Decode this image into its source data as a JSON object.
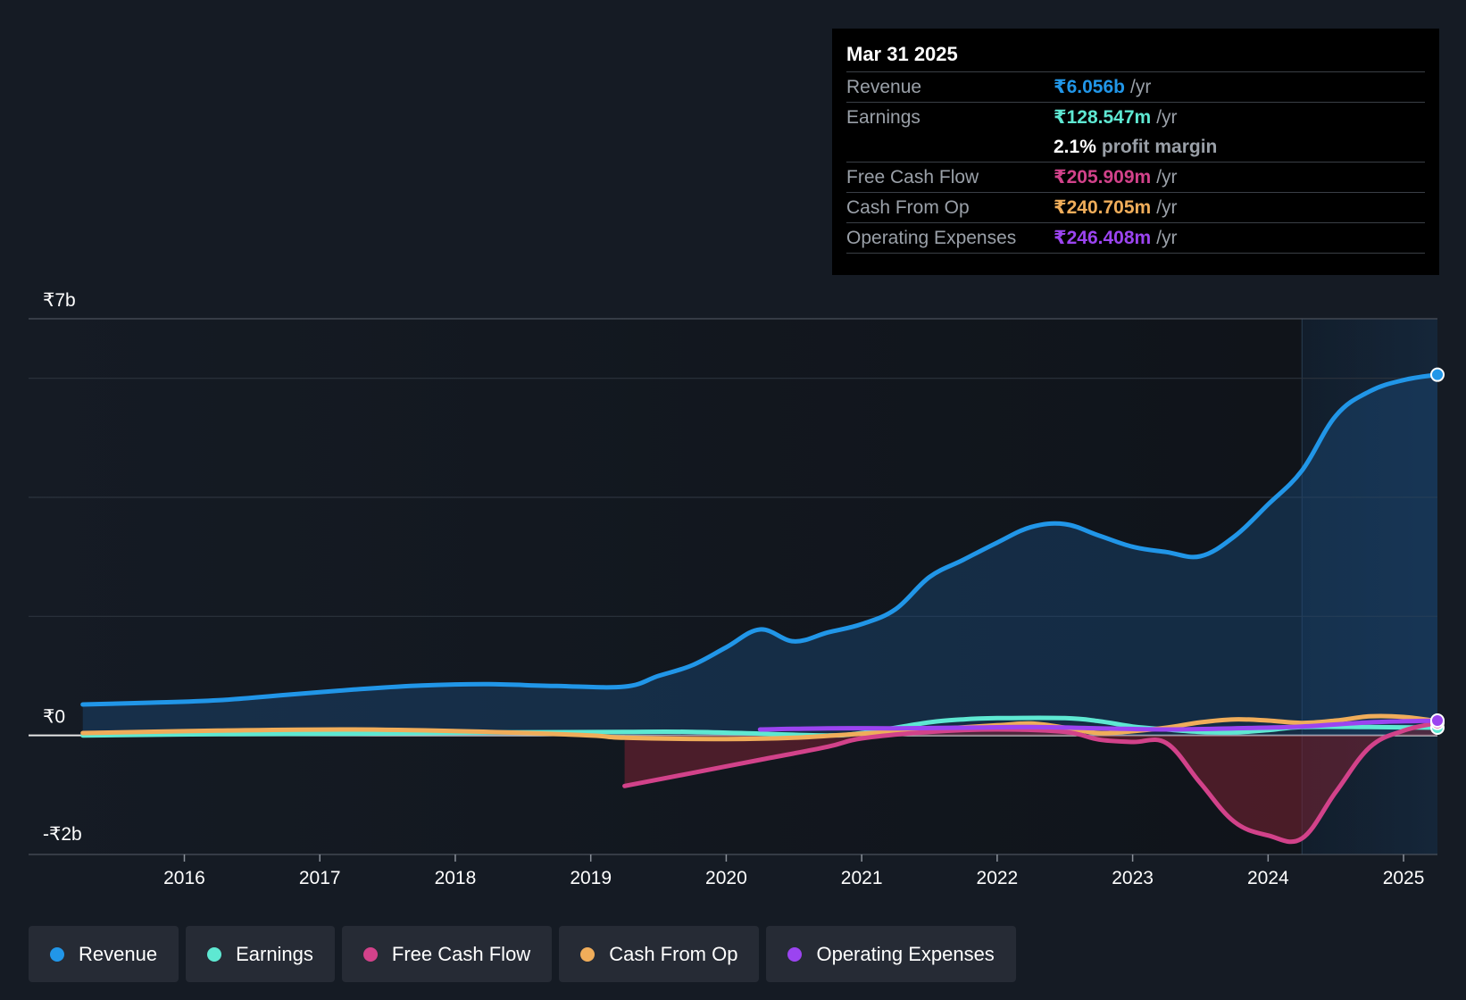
{
  "tooltip": {
    "date": "Mar 31 2025",
    "revenue": {
      "label": "Revenue",
      "value": "₹6.056b",
      "unit": "/yr"
    },
    "earnings": {
      "label": "Earnings",
      "value": "₹128.547m",
      "unit": "/yr"
    },
    "profit_margin": {
      "value": "2.1%",
      "label": "profit margin"
    },
    "free_cash_flow": {
      "label": "Free Cash Flow",
      "value": "₹205.909m",
      "unit": "/yr"
    },
    "cash_from_op": {
      "label": "Cash From Op",
      "value": "₹240.705m",
      "unit": "/yr"
    },
    "operating_expenses": {
      "label": "Operating Expenses",
      "value": "₹246.408m",
      "unit": "/yr"
    }
  },
  "colors": {
    "revenue": "#2196e8",
    "earnings": "#5ee8d2",
    "free_cash_flow": "#d2428a",
    "cash_from_op": "#f0ad5a",
    "operating_expenses": "#9b44f0"
  },
  "legend": {
    "revenue": "Revenue",
    "earnings": "Earnings",
    "free_cash_flow": "Free Cash Flow",
    "cash_from_op": "Cash From Op",
    "operating_expenses": "Operating Expenses"
  },
  "chart_data": {
    "type": "line",
    "title": "",
    "ylabel": "",
    "xlabel": "",
    "ylim": [
      -2.0,
      7.0
    ],
    "y_unit": "₹ billions",
    "y_tick_labels": [
      {
        "value": 7,
        "label": "₹7b"
      },
      {
        "value": 0,
        "label": "₹0"
      },
      {
        "value": -2,
        "label": "-₹2b"
      }
    ],
    "gridlines": [
      7,
      6,
      4,
      2,
      0,
      -2
    ],
    "x_ticks": [
      2016,
      2017,
      2018,
      2019,
      2020,
      2021,
      2022,
      2023,
      2024,
      2025
    ],
    "xlim": [
      2014.85,
      2025.25
    ],
    "highlight_from": 2024.25,
    "series": [
      {
        "name": "Revenue",
        "key": "revenue",
        "fill": true,
        "points": [
          [
            2015.25,
            0.52
          ],
          [
            2015.75,
            0.55
          ],
          [
            2016.25,
            0.59
          ],
          [
            2016.75,
            0.68
          ],
          [
            2017.25,
            0.77
          ],
          [
            2017.75,
            0.84
          ],
          [
            2018.25,
            0.86
          ],
          [
            2018.75,
            0.83
          ],
          [
            2019.25,
            0.82
          ],
          [
            2019.5,
            1.0
          ],
          [
            2019.75,
            1.18
          ],
          [
            2020.0,
            1.48
          ],
          [
            2020.25,
            1.78
          ],
          [
            2020.5,
            1.58
          ],
          [
            2020.75,
            1.73
          ],
          [
            2021.0,
            1.87
          ],
          [
            2021.25,
            2.12
          ],
          [
            2021.5,
            2.66
          ],
          [
            2021.75,
            2.95
          ],
          [
            2022.0,
            3.24
          ],
          [
            2022.25,
            3.5
          ],
          [
            2022.5,
            3.55
          ],
          [
            2022.75,
            3.36
          ],
          [
            2023.0,
            3.17
          ],
          [
            2023.25,
            3.08
          ],
          [
            2023.5,
            3.01
          ],
          [
            2023.75,
            3.34
          ],
          [
            2024.0,
            3.88
          ],
          [
            2024.25,
            4.45
          ],
          [
            2024.5,
            5.37
          ],
          [
            2024.75,
            5.78
          ],
          [
            2025.0,
            5.97
          ],
          [
            2025.25,
            6.06
          ]
        ]
      },
      {
        "name": "Earnings",
        "key": "earnings",
        "fill": false,
        "points": [
          [
            2015.25,
            0.0
          ],
          [
            2016.25,
            0.02
          ],
          [
            2017.25,
            0.03
          ],
          [
            2018.25,
            0.05
          ],
          [
            2019.25,
            0.06
          ],
          [
            2019.75,
            0.06
          ],
          [
            2020.25,
            0.03
          ],
          [
            2020.75,
            0.0
          ],
          [
            2021.0,
            0.04
          ],
          [
            2021.5,
            0.22
          ],
          [
            2021.75,
            0.27
          ],
          [
            2022.0,
            0.29
          ],
          [
            2022.5,
            0.29
          ],
          [
            2022.75,
            0.24
          ],
          [
            2023.0,
            0.15
          ],
          [
            2023.25,
            0.1
          ],
          [
            2023.5,
            0.06
          ],
          [
            2023.75,
            0.05
          ],
          [
            2024.0,
            0.09
          ],
          [
            2024.25,
            0.14
          ],
          [
            2024.75,
            0.14
          ],
          [
            2025.25,
            0.13
          ]
        ]
      },
      {
        "name": "Cash From Op",
        "key": "cash_from_op",
        "fill": false,
        "points": [
          [
            2015.25,
            0.04
          ],
          [
            2016.25,
            0.08
          ],
          [
            2017.25,
            0.1
          ],
          [
            2018.25,
            0.06
          ],
          [
            2019.0,
            0.0
          ],
          [
            2019.25,
            -0.04
          ],
          [
            2020.0,
            -0.06
          ],
          [
            2020.5,
            -0.04
          ],
          [
            2021.0,
            0.03
          ],
          [
            2021.5,
            0.1
          ],
          [
            2022.0,
            0.17
          ],
          [
            2022.25,
            0.2
          ],
          [
            2022.5,
            0.13
          ],
          [
            2022.75,
            0.04
          ],
          [
            2023.0,
            0.07
          ],
          [
            2023.25,
            0.13
          ],
          [
            2023.5,
            0.22
          ],
          [
            2023.75,
            0.27
          ],
          [
            2024.0,
            0.25
          ],
          [
            2024.25,
            0.21
          ],
          [
            2024.5,
            0.25
          ],
          [
            2024.75,
            0.32
          ],
          [
            2025.0,
            0.31
          ],
          [
            2025.25,
            0.24
          ]
        ]
      },
      {
        "name": "Free Cash Flow",
        "key": "free_cash_flow",
        "fill": true,
        "points": [
          [
            2019.25,
            -0.85
          ],
          [
            2019.75,
            -0.63
          ],
          [
            2020.25,
            -0.41
          ],
          [
            2020.75,
            -0.19
          ],
          [
            2021.0,
            -0.05
          ],
          [
            2021.5,
            0.06
          ],
          [
            2022.0,
            0.1
          ],
          [
            2022.5,
            0.06
          ],
          [
            2022.75,
            -0.07
          ],
          [
            2023.0,
            -0.11
          ],
          [
            2023.25,
            -0.13
          ],
          [
            2023.5,
            -0.8
          ],
          [
            2023.75,
            -1.45
          ],
          [
            2024.0,
            -1.68
          ],
          [
            2024.25,
            -1.73
          ],
          [
            2024.5,
            -0.95
          ],
          [
            2024.75,
            -0.2
          ],
          [
            2025.0,
            0.08
          ],
          [
            2025.25,
            0.21
          ]
        ]
      },
      {
        "name": "Operating Expenses",
        "key": "operating_expenses",
        "fill": false,
        "points": [
          [
            2020.25,
            0.1
          ],
          [
            2020.75,
            0.12
          ],
          [
            2021.25,
            0.12
          ],
          [
            2021.75,
            0.13
          ],
          [
            2022.25,
            0.14
          ],
          [
            2022.75,
            0.12
          ],
          [
            2023.25,
            0.1
          ],
          [
            2023.75,
            0.12
          ],
          [
            2024.25,
            0.15
          ],
          [
            2024.75,
            0.22
          ],
          [
            2025.25,
            0.25
          ]
        ]
      }
    ]
  }
}
